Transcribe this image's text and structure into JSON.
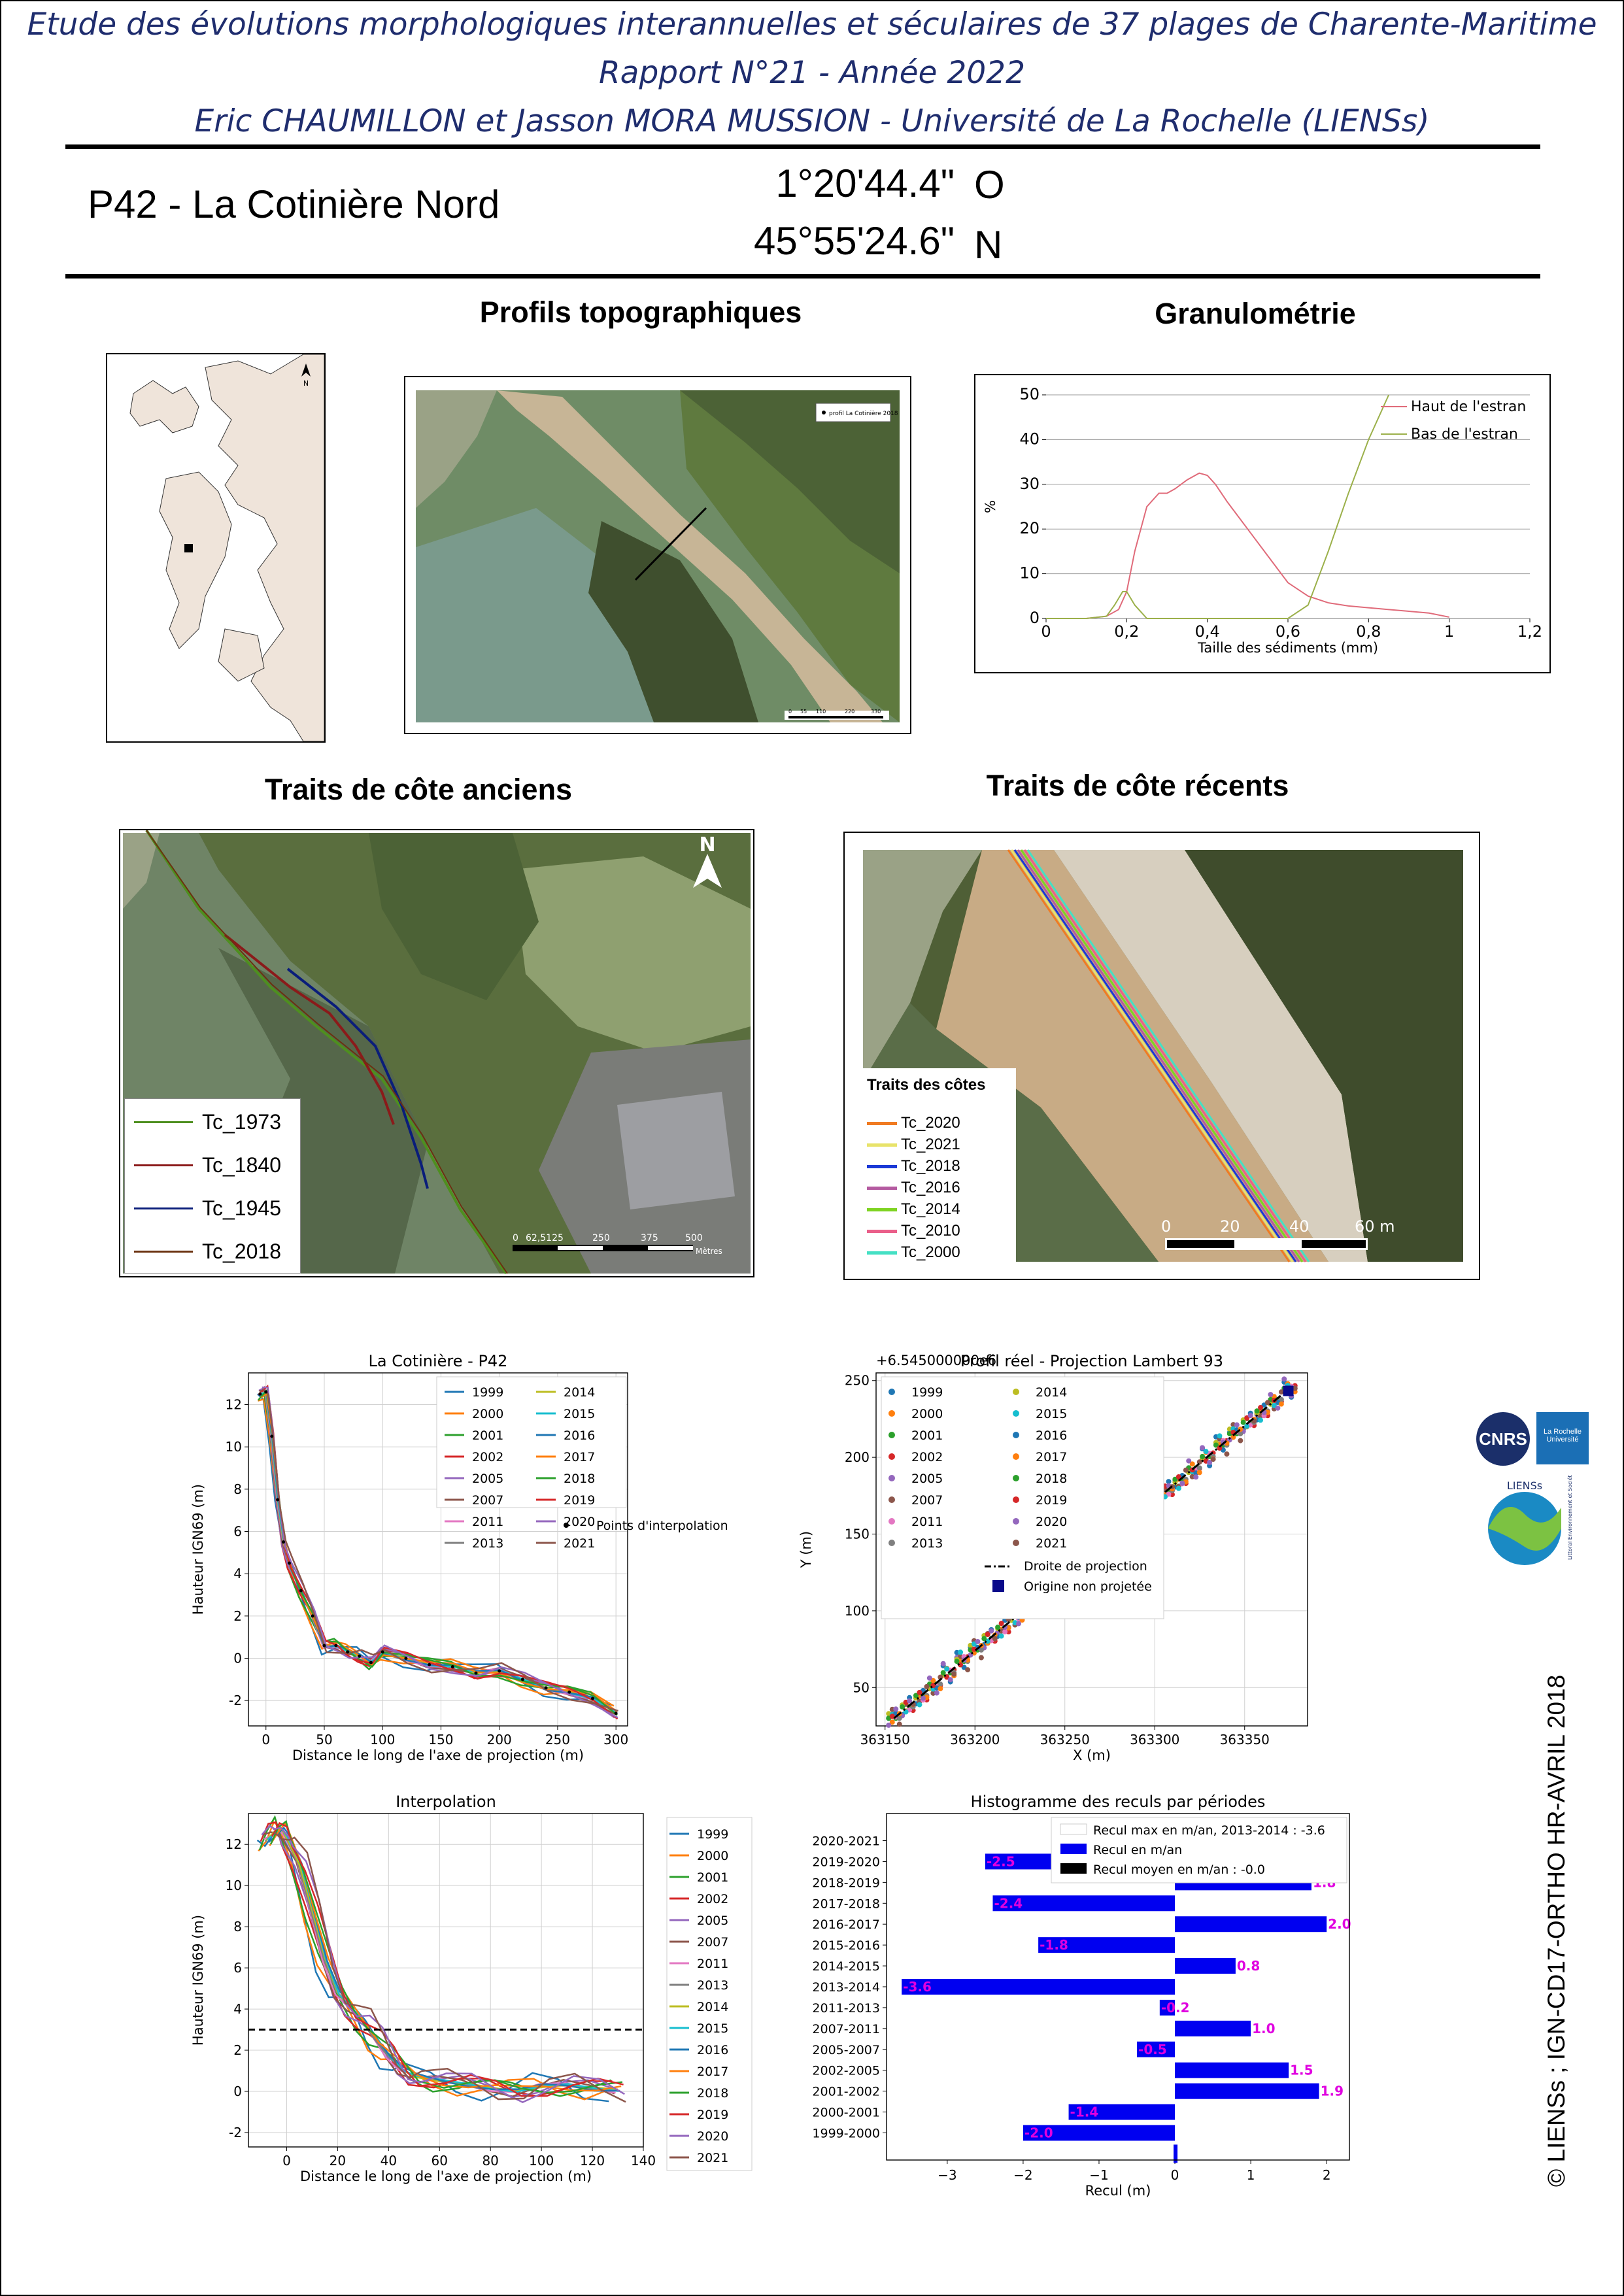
{
  "header": {
    "line1": "Etude des évolutions morphologiques interannuelles et séculaires de 37 plages de Charente-Maritime",
    "line2": "Rapport N°21 - Année 2022",
    "line3": "Eric CHAUMILLON et Jasson MORA MUSSION - Université de La Rochelle (LIENSs)"
  },
  "site": {
    "name": "P42 -  La Cotinière Nord",
    "lon": "1°20'44.4\"",
    "lon_dir": "O",
    "lat": "45°55'24.6\"",
    "lat_dir": "N"
  },
  "sections": {
    "profils": "Profils topographiques",
    "granulo": "Granulométrie",
    "anciens": "Traits de côte anciens",
    "recents": "Traits de côte récents"
  },
  "locator_map": {
    "north": "N"
  },
  "profile_photo": {
    "legend": "profil La Cotinière 2018",
    "scale": [
      "0",
      "55",
      "110",
      "220",
      "330"
    ]
  },
  "old_coast": {
    "north": "N",
    "scale_labels": [
      "0",
      "62,5125",
      "250",
      "375",
      "500"
    ],
    "scale_unit": "Mètres",
    "legend": [
      {
        "label": "Tc_1973",
        "color": "#4e8f1f"
      },
      {
        "label": "Tc_1840",
        "color": "#8b1a1a"
      },
      {
        "label": "Tc_1945",
        "color": "#0a1d7a"
      },
      {
        "label": "Tc_2018",
        "color": "#6b3210"
      }
    ]
  },
  "recent_coast": {
    "legend_title": "Traits des côtes",
    "legend": [
      {
        "label": "Tc_2020",
        "color": "#f07b22"
      },
      {
        "label": "Tc_2021",
        "color": "#e8e36a"
      },
      {
        "label": "Tc_2018",
        "color": "#1b39d6"
      },
      {
        "label": "Tc_2016",
        "color": "#b45aa0"
      },
      {
        "label": "Tc_2014",
        "color": "#7ed321"
      },
      {
        "label": "Tc_2010",
        "color": "#ea5f8a"
      },
      {
        "label": "Tc_2000",
        "color": "#44e0c4"
      }
    ],
    "scale_labels": [
      "0",
      "20",
      "40",
      "60 m"
    ]
  },
  "logos": {
    "cnrs": "CNRS",
    "univ": "La Rochelle Université",
    "liens": "LIENSs",
    "liens_sub": "Littoral Environnement et Sociétés"
  },
  "credit": "© LIENSs ; IGN-CD17-ORTHO HR-AVRIL 2018",
  "chart_data": [
    {
      "type": "line",
      "title": "",
      "xlabel": "Taille des sédiments (mm)",
      "ylabel": "%",
      "xlim": [
        0,
        1.2
      ],
      "ylim": [
        0,
        50
      ],
      "xticks": [
        "0",
        "0,2",
        "0,4",
        "0,6",
        "0,8",
        "1",
        "1,2"
      ],
      "yticks": [
        "0",
        "10",
        "20",
        "30",
        "40",
        "50"
      ],
      "grid": "horizontal",
      "legend": "top-right",
      "series": [
        {
          "name": "Haut de l'estran",
          "color": "#e06b7a",
          "x": [
            0,
            0.05,
            0.1,
            0.15,
            0.18,
            0.2,
            0.22,
            0.25,
            0.28,
            0.3,
            0.32,
            0.35,
            0.38,
            0.4,
            0.42,
            0.45,
            0.5,
            0.55,
            0.6,
            0.65,
            0.7,
            0.75,
            0.8,
            0.85,
            0.9,
            0.95,
            1.0
          ],
          "y": [
            0,
            0,
            0,
            0.5,
            2,
            6,
            15,
            25,
            28,
            28,
            29,
            31,
            32.5,
            32,
            30,
            26,
            20,
            14,
            8,
            5,
            3.5,
            2.8,
            2.4,
            2,
            1.6,
            1.2,
            0.3
          ]
        },
        {
          "name": "Bas de l'estran",
          "color": "#9bb04a",
          "x": [
            0,
            0.1,
            0.15,
            0.17,
            0.19,
            0.2,
            0.22,
            0.25,
            0.3,
            0.5,
            0.6,
            0.65,
            0.7,
            0.75,
            0.8,
            0.85
          ],
          "y": [
            0,
            0,
            0.5,
            3,
            6,
            6,
            3,
            0,
            0,
            0,
            0,
            3,
            15,
            28,
            40,
            50
          ]
        }
      ]
    },
    {
      "type": "line",
      "title": "La Cotinière - P42",
      "xlabel": "Distance le long de l'axe de projection (m)",
      "ylabel": "Hauteur IGN69 (m)",
      "xlim": [
        -15,
        310
      ],
      "ylim": [
        -3.2,
        13.5
      ],
      "xticks": [
        0,
        50,
        100,
        150,
        200,
        250,
        300
      ],
      "yticks": [
        -2,
        0,
        2,
        4,
        6,
        8,
        10,
        12
      ],
      "grid": true,
      "profile_x": [
        -5,
        0,
        5,
        10,
        15,
        20,
        30,
        40,
        50,
        60,
        70,
        80,
        90,
        100,
        120,
        140,
        160,
        180,
        200,
        220,
        240,
        260,
        280,
        300
      ],
      "profile_y": [
        12.5,
        12.6,
        10.5,
        7.5,
        5.5,
        4.5,
        3.2,
        2,
        0.6,
        0.6,
        0.3,
        0.1,
        -0.2,
        0.3,
        0,
        -0.3,
        -0.4,
        -0.7,
        -0.6,
        -1,
        -1.4,
        -1.6,
        -1.9,
        -2.6
      ],
      "legend_years": [
        "1999",
        "2000",
        "2001",
        "2002",
        "2005",
        "2007",
        "2011",
        "2013",
        "2014",
        "2015",
        "2016",
        "2017",
        "2018",
        "2019",
        "2020",
        "2021"
      ],
      "legend_colors": [
        "#1f77b4",
        "#ff7f0e",
        "#2ca02c",
        "#d62728",
        "#9467bd",
        "#8c564b",
        "#e377c2",
        "#7f7f7f",
        "#bcbd22",
        "#17becf",
        "#1f77b4",
        "#ff7f0e",
        "#2ca02c",
        "#d62728",
        "#9467bd",
        "#8c564b"
      ],
      "points_label": "Points d'interpolation"
    },
    {
      "type": "scatter",
      "title": "Profil réel - Projection Lambert 93",
      "offset_label": "+6.545000000e6",
      "xlabel": "X (m)",
      "ylabel": "Y (m)",
      "xlim": [
        363145,
        363385
      ],
      "ylim": [
        25,
        255
      ],
      "xticks": [
        363150,
        363200,
        363250,
        363300,
        363350
      ],
      "yticks": [
        50,
        100,
        150,
        200,
        250
      ],
      "grid": true,
      "line": {
        "x": [
          363155,
          363375
        ],
        "y": [
          30,
          245
        ]
      },
      "legend_years": [
        "1999",
        "2000",
        "2001",
        "2002",
        "2005",
        "2007",
        "2011",
        "2013",
        "2014",
        "2015",
        "2016",
        "2017",
        "2018",
        "2019",
        "2020",
        "2021"
      ],
      "legend_colors": [
        "#1f77b4",
        "#ff7f0e",
        "#2ca02c",
        "#d62728",
        "#9467bd",
        "#8c564b",
        "#e377c2",
        "#7f7f7f",
        "#bcbd22",
        "#17becf",
        "#1f77b4",
        "#ff7f0e",
        "#2ca02c",
        "#d62728",
        "#9467bd",
        "#8c564b"
      ],
      "line_label": "Droite de projection",
      "origin_label": "Origine non projetée"
    },
    {
      "type": "line",
      "title": "Interpolation",
      "xlabel": "Distance le long de l'axe de projection (m)",
      "ylabel": "Hauteur IGN69 (m)",
      "xlim": [
        -15,
        140
      ],
      "ylim": [
        -2.7,
        13.5
      ],
      "xticks": [
        0,
        20,
        40,
        60,
        80,
        100,
        120,
        140
      ],
      "yticks": [
        -2,
        0,
        2,
        4,
        6,
        8,
        10,
        12
      ],
      "grid": true,
      "hline": 3,
      "profile_x": [
        -8,
        -5,
        -2,
        0,
        5,
        10,
        15,
        20,
        25,
        30,
        35,
        40,
        45,
        50,
        60,
        70,
        80,
        90,
        100,
        110,
        120,
        130
      ],
      "profile_y": [
        12.2,
        12.6,
        12.8,
        12.3,
        11,
        8.8,
        6.5,
        4.8,
        4,
        3.4,
        2.6,
        1.8,
        1.1,
        0.7,
        0.5,
        0.4,
        0.2,
        0,
        0.2,
        0.3,
        0.2,
        0.1
      ],
      "legend_years": [
        "1999",
        "2000",
        "2001",
        "2002",
        "2005",
        "2007",
        "2011",
        "2013",
        "2014",
        "2015",
        "2016",
        "2017",
        "2018",
        "2019",
        "2020",
        "2021"
      ],
      "legend_colors": [
        "#1f77b4",
        "#ff7f0e",
        "#2ca02c",
        "#d62728",
        "#9467bd",
        "#8c564b",
        "#e377c2",
        "#7f7f7f",
        "#bcbd22",
        "#17becf",
        "#1f77b4",
        "#ff7f0e",
        "#2ca02c",
        "#d62728",
        "#9467bd",
        "#8c564b"
      ]
    },
    {
      "type": "bar",
      "orientation": "horizontal",
      "title": "Histogramme des reculs par périodes",
      "xlabel": "Recul (m)",
      "ylabel": "",
      "xlim": [
        -3.8,
        2.3
      ],
      "xticks": [
        -3,
        -2,
        -1,
        0,
        1,
        2
      ],
      "categories": [
        "1999-2000",
        "2000-2001",
        "2001-2002",
        "2002-2005",
        "2005-2007",
        "2007-2011",
        "2011-2013",
        "2013-2014",
        "2014-2015",
        "2015-2016",
        "2016-2017",
        "2017-2018",
        "2018-2019",
        "2019-2020",
        "2020-2021"
      ],
      "values": [
        -2.0,
        -1.4,
        1.9,
        1.5,
        -0.5,
        1.0,
        -0.2,
        -3.6,
        0.8,
        -1.8,
        2.0,
        -2.4,
        1.8,
        -2.5,
        0
      ],
      "value_labels": [
        "-2.0",
        "-1.4",
        "1.9",
        "1.5",
        "-0.5",
        "1.0",
        "-0.2",
        "-3.6",
        "0.8",
        "-1.8",
        "2.0",
        "-2.4",
        "1.8",
        "-2.5",
        ""
      ],
      "mean": -0.0,
      "legend": [
        "Recul max en m/an, 2013-2014 : -3.6",
        "Recul en m/an",
        "Recul moyen en m/an : -0.0"
      ]
    }
  ]
}
